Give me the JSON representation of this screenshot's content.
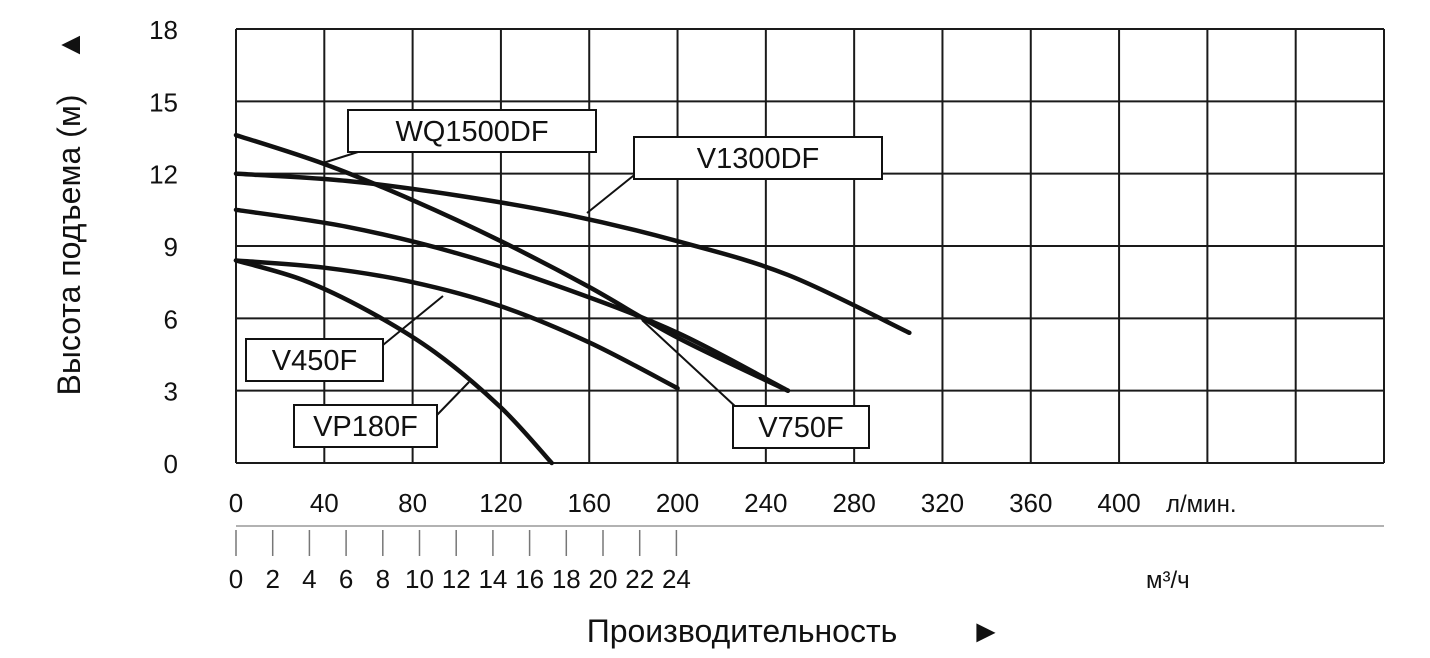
{
  "chart_data": {
    "type": "line",
    "ylabel": "Высота подъема (м)",
    "ylabel_arrow": "▲",
    "xlabel": "Производительность",
    "xlabel_arrow": "►",
    "ylim": [
      0,
      18
    ],
    "yticks": [
      0,
      3,
      6,
      9,
      12,
      15,
      18
    ],
    "xlim": [
      0,
      520
    ],
    "x_unit": "л/мин.",
    "xticks": [
      0,
      40,
      80,
      120,
      160,
      200,
      240,
      280,
      320,
      360,
      400
    ],
    "x2_unit": "м³/ч",
    "x2ticks": [
      0,
      2,
      4,
      6,
      8,
      10,
      12,
      14,
      16,
      18,
      20,
      22,
      24
    ],
    "grid": true,
    "series": [
      {
        "name": "WQ1500DF",
        "x": [
          0,
          40,
          80,
          120,
          160,
          200,
          250
        ],
        "y": [
          13.6,
          12.4,
          10.9,
          9.2,
          7.3,
          5.2,
          3.0
        ]
      },
      {
        "name": "V1300DF",
        "x": [
          0,
          50,
          100,
          150,
          200,
          250,
          305
        ],
        "y": [
          12.0,
          11.7,
          11.1,
          10.3,
          9.2,
          7.8,
          5.4
        ]
      },
      {
        "name": "V750F",
        "x": [
          0,
          50,
          100,
          150,
          200,
          250
        ],
        "y": [
          10.5,
          9.8,
          8.7,
          7.2,
          5.4,
          3.0
        ]
      },
      {
        "name": "V450F",
        "x": [
          0,
          40,
          80,
          120,
          160,
          200
        ],
        "y": [
          8.4,
          8.1,
          7.5,
          6.5,
          5.0,
          3.1
        ]
      },
      {
        "name": "VP180F",
        "x": [
          0,
          30,
          60,
          90,
          120,
          143
        ],
        "y": [
          8.4,
          7.6,
          6.3,
          4.6,
          2.3,
          0.0
        ]
      }
    ]
  }
}
